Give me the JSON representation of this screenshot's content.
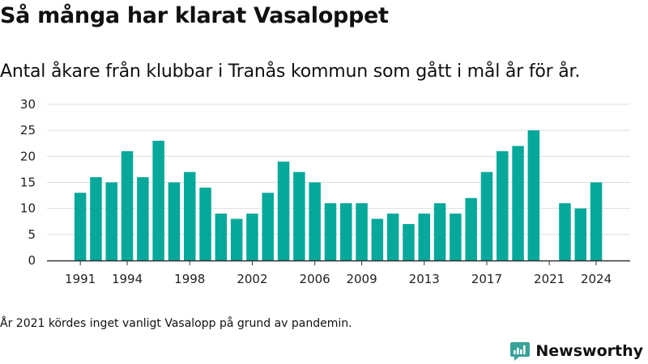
{
  "title": "Så många har klarat Vasaloppet",
  "subtitle": "Antal åkare från klubbar i Tranås kommun som gått i mål år för år.",
  "footnote": "År 2021 kördes inget vanligt Vasalopp på grund av pandemin.",
  "brand": {
    "name": "Newsworthy",
    "icon": "newsworthy-logo-icon",
    "color": "#3aa399"
  },
  "colors": {
    "bar": "#05a89a",
    "grid": "#dddddd",
    "axis": "#333333"
  },
  "chart_data": {
    "type": "bar",
    "title": "Så många har klarat Vasaloppet",
    "xlabel": "",
    "ylabel": "",
    "ylim": [
      0,
      30
    ],
    "yticks": [
      0,
      5,
      10,
      15,
      20,
      25,
      30
    ],
    "xticks": [
      1991,
      1994,
      1998,
      2002,
      2006,
      2009,
      2013,
      2017,
      2021,
      2024
    ],
    "grid": true,
    "categories": [
      1991,
      1992,
      1993,
      1994,
      1995,
      1996,
      1997,
      1998,
      1999,
      2000,
      2001,
      2002,
      2003,
      2004,
      2005,
      2006,
      2007,
      2008,
      2009,
      2010,
      2011,
      2012,
      2013,
      2014,
      2015,
      2016,
      2017,
      2018,
      2019,
      2020,
      2021,
      2022,
      2023,
      2024
    ],
    "values": [
      13,
      16,
      15,
      21,
      16,
      23,
      15,
      17,
      14,
      9,
      8,
      9,
      13,
      19,
      17,
      15,
      11,
      11,
      11,
      8,
      9,
      7,
      9,
      11,
      9,
      12,
      17,
      21,
      22,
      25,
      null,
      11,
      10,
      15
    ]
  }
}
